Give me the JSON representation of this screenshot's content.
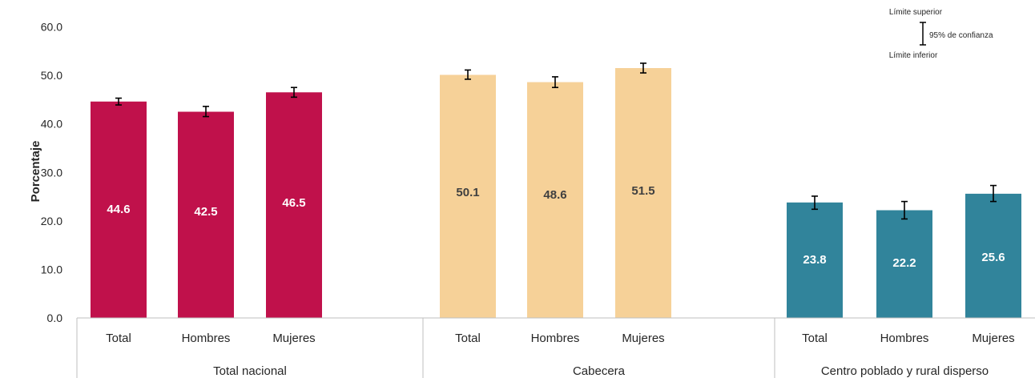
{
  "chart_data": {
    "type": "bar",
    "ylabel": "Porcentaje",
    "ylim": [
      0,
      60
    ],
    "yticks": [
      "0.0",
      "10.0",
      "20.0",
      "30.0",
      "40.0",
      "50.0",
      "60.0"
    ],
    "grid": false,
    "groups": [
      {
        "name": "Total nacional",
        "color": "#C0114B",
        "label_color": "#ffffff",
        "categories": [
          "Total",
          "Hombres",
          "Mujeres"
        ],
        "values": [
          44.6,
          42.5,
          46.5
        ],
        "labels": [
          "44.6",
          "42.5",
          "46.5"
        ],
        "ci_lower": [
          43.9,
          41.5,
          45.5
        ],
        "ci_upper": [
          45.3,
          43.6,
          47.5
        ]
      },
      {
        "name": "Cabecera",
        "color": "#F6D198",
        "label_color": "#404040",
        "categories": [
          "Total",
          "Hombres",
          "Mujeres"
        ],
        "values": [
          50.1,
          48.6,
          51.5
        ],
        "labels": [
          "50.1",
          "48.6",
          "51.5"
        ],
        "ci_lower": [
          49.2,
          47.5,
          50.5
        ],
        "ci_upper": [
          51.1,
          49.7,
          52.5
        ]
      },
      {
        "name": "Centro poblado y rural disperso",
        "color": "#31849B",
        "label_color": "#ffffff",
        "categories": [
          "Total",
          "Hombres",
          "Mujeres"
        ],
        "values": [
          23.8,
          22.2,
          25.6
        ],
        "labels": [
          "23.8",
          "22.2",
          "25.6"
        ],
        "ci_lower": [
          22.4,
          20.4,
          24.0
        ],
        "ci_upper": [
          25.1,
          24.0,
          27.3
        ]
      }
    ],
    "legend": {
      "upper": "Límite superior",
      "middle": "95% de confianza",
      "lower": "Límite inferior",
      "position": "top-right"
    }
  }
}
